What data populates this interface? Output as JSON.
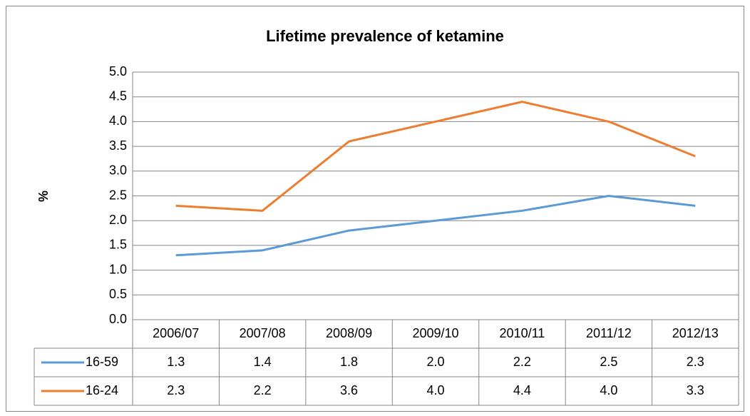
{
  "chart_data": {
    "type": "line",
    "title": "Lifetime prevalence of ketamine",
    "y_label": "%",
    "categories": [
      "2006/07",
      "2007/08",
      "2008/09",
      "2009/10",
      "2010/11",
      "2011/12",
      "2012/13"
    ],
    "series": [
      {
        "name": "16-59",
        "color": "#5b9bd5",
        "values": [
          1.3,
          1.4,
          1.8,
          2.0,
          2.2,
          2.5,
          2.3
        ],
        "value_labels": [
          "1.3",
          "1.4",
          "1.8",
          "2.0",
          "2.2",
          "2.5",
          "2.3"
        ]
      },
      {
        "name": "16-24",
        "color": "#ed7d31",
        "values": [
          2.3,
          2.2,
          3.6,
          4.0,
          4.4,
          4.0,
          3.3
        ],
        "value_labels": [
          "2.3",
          "2.2",
          "3.6",
          "4.0",
          "4.4",
          "4.0",
          "3.3"
        ]
      }
    ],
    "ylim": [
      0,
      5
    ],
    "yticks": [
      {
        "value": 0,
        "label": "0.0"
      },
      0.5,
      {
        "value": 1,
        "label": "1.0"
      },
      1.5,
      {
        "value": 2,
        "label": "2.0"
      },
      2.5,
      {
        "value": 3,
        "label": "3.0"
      },
      3.5,
      {
        "value": 4,
        "label": "4.0"
      },
      4.5,
      {
        "value": 5,
        "label": "5.0"
      }
    ],
    "grid": true
  }
}
